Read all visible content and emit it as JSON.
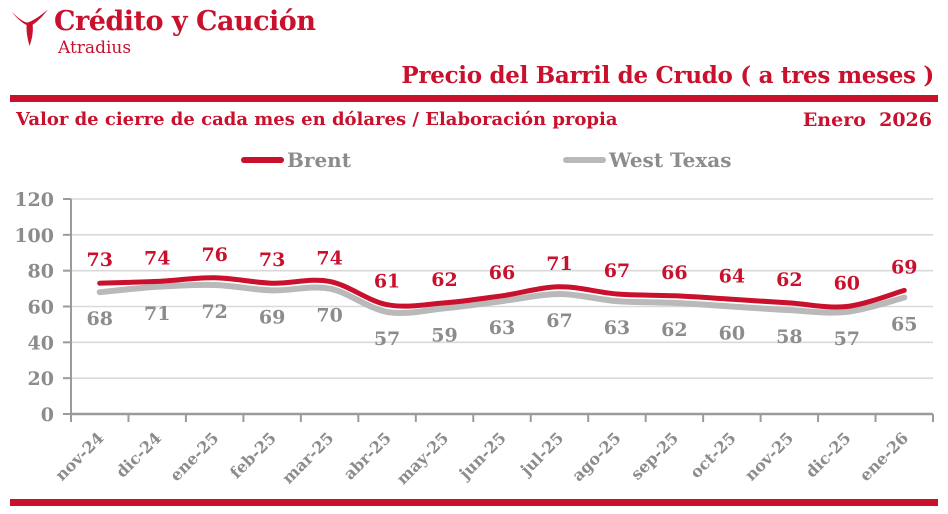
{
  "logo": {
    "brand": "Crédito y Caución",
    "sub": "Atradius"
  },
  "header": {
    "title": "Precio del Barril de Crudo ( a tres meses )"
  },
  "subheader": {
    "left": "Valor de cierre de cada mes en dólares / Elaboración propia",
    "right": "Enero  2026"
  },
  "colors": {
    "red": "#c9102d",
    "gray_line": "#b9b9b9",
    "gray_text": "#8c8c8c",
    "grid": "#d9d9d9",
    "axis": "#9b9b9b"
  },
  "chart_data": {
    "type": "line",
    "title": "Precio del Barril de Crudo ( a tres meses )",
    "subtitle": "Valor de cierre de cada mes en dólares / Elaboración propia",
    "period_label": "Enero 2026",
    "categories": [
      "nov-24",
      "dic-24",
      "ene-25",
      "feb-25",
      "mar-25",
      "abr-25",
      "may-25",
      "jun-25",
      "jul-25",
      "ago-25",
      "sep-25",
      "oct-25",
      "nov-25",
      "dic-25",
      "ene-26"
    ],
    "series": [
      {
        "name": "West Texas",
        "color": "#b9b9b9",
        "label_color": "#8c8c8c",
        "label_offset": 33,
        "stroke_width": 6,
        "values": [
          68,
          71,
          72,
          69,
          70,
          57,
          59,
          63,
          67,
          63,
          62,
          60,
          58,
          57,
          65
        ]
      },
      {
        "name": "Brent",
        "color": "#c9102d",
        "label_color": "#c9102d",
        "label_offset": -17,
        "stroke_width": 5,
        "values": [
          73,
          74,
          76,
          73,
          74,
          61,
          62,
          66,
          71,
          67,
          66,
          64,
          62,
          60,
          69
        ]
      }
    ],
    "legend_order": [
      "Brent",
      "West Texas"
    ],
    "legend_position": "top",
    "xlabel": "",
    "ylabel": "",
    "ylim": [
      0,
      120
    ],
    "yticks": [
      0,
      20,
      40,
      60,
      80,
      100,
      120
    ],
    "grid": true,
    "smooth": true,
    "data_labels": true
  }
}
